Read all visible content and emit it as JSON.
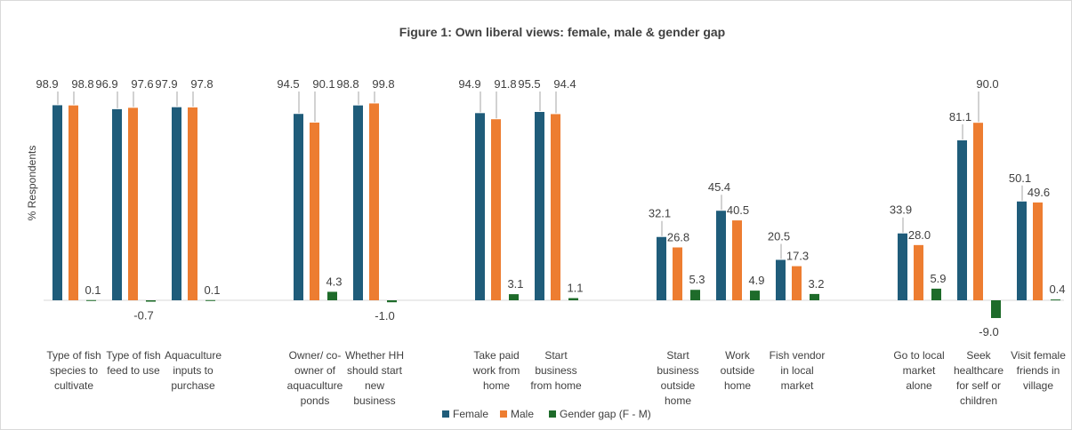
{
  "chart_data": {
    "type": "bar",
    "title": "Figure 1: Own liberal views: female, male & gender gap",
    "ylabel": "% Respondents",
    "xlabel": "",
    "ylim": [
      -12,
      105
    ],
    "grid": false,
    "legend_position": "bottom",
    "groups": [
      {
        "categories": [
          {
            "label": [
              "Type of fish",
              "species to",
              "cultivate"
            ],
            "female": 98.9,
            "male": 98.8,
            "gap": 0.1
          },
          {
            "label": [
              "Type of fish",
              "feed to use"
            ],
            "female": 96.9,
            "male": 97.6,
            "gap": -0.7
          },
          {
            "label": [
              "Aquaculture",
              "inputs to",
              "purchase"
            ],
            "female": 97.9,
            "male": 97.8,
            "gap": 0.1
          }
        ]
      },
      {
        "categories": [
          {
            "label": [
              "Owner/ co-",
              "owner of",
              "aquaculture",
              "ponds"
            ],
            "female": 94.5,
            "male": 90.1,
            "gap": 4.3
          },
          {
            "label": [
              "Whether HH",
              "should start",
              "new",
              "business"
            ],
            "female": 98.8,
            "male": 99.8,
            "gap": -1.0
          }
        ]
      },
      {
        "categories": [
          {
            "label": [
              "Take paid",
              "work from",
              "home"
            ],
            "female": 94.9,
            "male": 91.8,
            "gap": 3.1
          },
          {
            "label": [
              "Start",
              "business",
              "from home"
            ],
            "female": 95.5,
            "male": 94.4,
            "gap": 1.1
          }
        ]
      },
      {
        "categories": [
          {
            "label": [
              "Start",
              "business",
              "outside",
              "home"
            ],
            "female": 32.1,
            "male": 26.8,
            "gap": 5.3
          },
          {
            "label": [
              "Work",
              "outside",
              "home"
            ],
            "female": 45.4,
            "male": 40.5,
            "gap": 4.9
          },
          {
            "label": [
              "Fish vendor",
              "in local",
              "market"
            ],
            "female": 20.5,
            "male": 17.3,
            "gap": 3.2
          }
        ]
      },
      {
        "categories": [
          {
            "label": [
              "Go to local",
              "market",
              "alone"
            ],
            "female": 33.9,
            "male": 28.0,
            "gap": 5.9
          },
          {
            "label": [
              "Seek",
              "healthcare",
              "for self or",
              "children"
            ],
            "female": 81.1,
            "male": 90.0,
            "gap": -9.0
          },
          {
            "label": [
              "Visit female",
              "friends in",
              "village"
            ],
            "female": 50.1,
            "male": 49.6,
            "gap": 0.4
          }
        ]
      }
    ],
    "series": [
      {
        "name": "Female",
        "key": "female",
        "color": "#1f5c7a"
      },
      {
        "name": "Male",
        "key": "male",
        "color": "#ed7d31"
      },
      {
        "name": "Gender gap (F - M)",
        "key": "gap",
        "color": "#1e6b2a"
      }
    ]
  }
}
